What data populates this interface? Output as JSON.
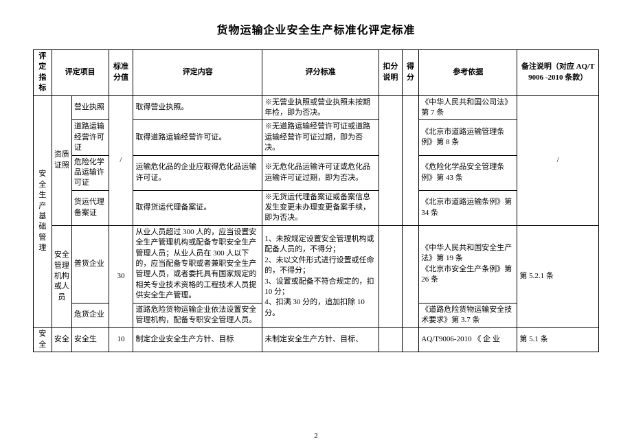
{
  "doc": {
    "title": "货物运输企业安全生产标准化评定标准",
    "page_number": "2"
  },
  "columns": {
    "c1": "评定指标",
    "c2": "评定项目",
    "c3": "标准分值",
    "c4": "评定内容",
    "c5": "评分标准",
    "c6": "扣分说明",
    "c7": "得分",
    "c8": "参考依据",
    "c9": "备注说明（对应 AQ/T 9006 -2010 条款）"
  },
  "rows": {
    "r1": {
      "l1": "安全生产基础管理",
      "g1_l2": "资质证照",
      "g1_r1_l3": "营业执照",
      "g1_r1_c4": "取得营业执照。",
      "g1_r1_c5": "※无营业执照或营业执照未按期年检，即为否决。",
      "g1_r1_c8": "《中华人民共和国公司法》第 7 条",
      "g1_score": "/",
      "g1_note": "/",
      "g1_r2_l3": "道路运输经营许可证",
      "g1_r2_c4": "取得道路运输经营许可证。",
      "g1_r2_c5": "※无道路运输经营许可证或道路运输经营许可证过期，即为否决。",
      "g1_r2_c8": "《北京市道路运输管理条例》第 8 条",
      "g1_r3_l3": "危险化学品运输许可证",
      "g1_r3_c4": "运输危化品的企业应取得危化品运输许可证。",
      "g1_r3_c5": "※无危化品运输许可证或危化品运输许可证过期，即为否决。",
      "g1_r3_c8": "《危险化学品安全管理条例》第 43 条",
      "g1_r4_l3": "货运代理备案证",
      "g1_r4_c4": "取得货运代理备案证。",
      "g1_r4_c5": "※无货运代理备案证或备案信息发生变更未办理变更备案手续，即为否决。",
      "g1_r4_c8": "《北京市道路运输条例》第 34 条",
      "g2_l2": "安全管理机构或人员",
      "g2_r1_l3": "普货企业",
      "g2_score": "30",
      "g2_r1_c4": "从业人员超过 300 人的，应当设置安全生产管理机构或配备专职安全生产管理人员；从业人员在 300 人以下的，应当配备专职或者兼职安全生产管理人员，或者委托具有国家规定的相关专业技术资格的工程技术人员提供安全生产管理。",
      "g2_c5": "1、未按规定设置安全管理机构或配备人员的，不得分；\n2、未以文件形式进行设置或任命的，不得分；\n3、设置或配备不符合规定的，扣 10 分；\n4、扣满 30 分的，追加扣除 10 分。",
      "g2_r1_c8": "《中华人民共和国安全生产法》第 19 条\n《北京市安全生产条例》第 26 条",
      "g2_note": "第 5.2.1 条",
      "g2_r2_l3": "危货企业",
      "g2_r2_c4": "道路危险货物运输企业依法设置安全管理机构，配备专职安全管理人员。",
      "g2_r2_c8": "《道路危险货物运输安全技术要求》第 3.7 条"
    },
    "r_last": {
      "l1": "安全",
      "l2": "安全",
      "l3": "安全生",
      "score": "10",
      "c4": "制定企业安全生产方针、目标",
      "c5": "未制定安全生产方针、目标、",
      "c8": "AQ/T9006-2010 《 企 业",
      "note": "第 5.1 条"
    }
  }
}
